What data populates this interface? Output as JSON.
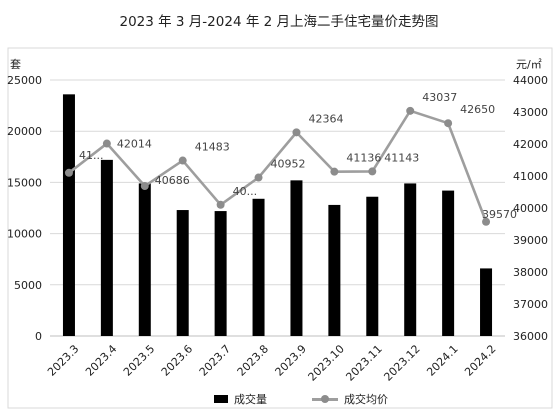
{
  "chart_data": {
    "type": "bar-line",
    "title": "2023 年 3 月-2024 年 2 月上海二手住宅量价走势图",
    "categories": [
      "2023.3",
      "2023.4",
      "2023.5",
      "2023.6",
      "2023.7",
      "2023.8",
      "2023.9",
      "2023.10",
      "2023.11",
      "2023.12",
      "2024.1",
      "2024.2"
    ],
    "series": [
      {
        "name": "成交量",
        "type": "bar",
        "axis": "left",
        "color": "#000000",
        "values": [
          23600,
          17200,
          14900,
          12300,
          12200,
          13400,
          15200,
          12800,
          13600,
          14900,
          14200,
          6600
        ]
      },
      {
        "name": "成交均价",
        "type": "line",
        "axis": "right",
        "color": "#9e9e9e",
        "values": [
          41100,
          42014,
          40686,
          41483,
          40100,
          40952,
          42364,
          41136,
          41143,
          43037,
          42650,
          39570
        ],
        "labels": [
          "41...",
          "42014",
          "40686",
          "41483",
          "40...",
          "40952",
          "42364",
          "41136",
          "41143",
          "43037",
          "42650",
          "39570"
        ]
      }
    ],
    "y_left": {
      "unit": "套",
      "min": 0,
      "max": 25000,
      "ticks": [
        "0",
        "5000",
        "10000",
        "15000",
        "20000",
        "25000"
      ]
    },
    "y_right": {
      "unit": "元/㎡",
      "min": 36000,
      "max": 44000,
      "ticks": [
        "36000",
        "37000",
        "38000",
        "39000",
        "40000",
        "41000",
        "42000",
        "43000",
        "44000"
      ]
    },
    "grid": true,
    "legend": "bottom"
  }
}
